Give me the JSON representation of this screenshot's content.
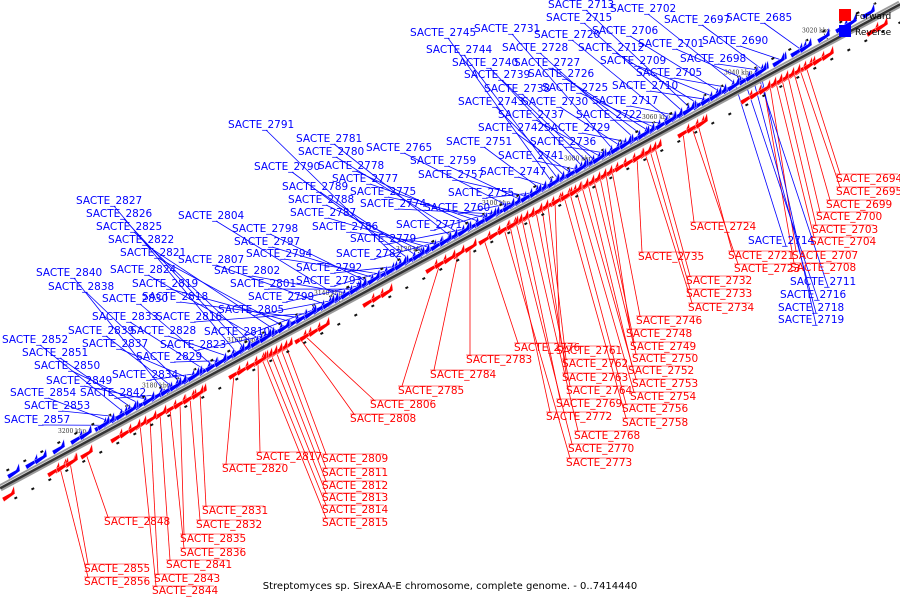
{
  "caption": "Streptomyces sp. SirexAA-E chromosome, complete genome. - 0..7414440",
  "legend": {
    "forward_label": "Forward",
    "reverse_label": "Reverse",
    "forward_color": "#ff0000",
    "reverse_color": "#0000ff"
  },
  "ticks": [
    "3020 kbp",
    "3040 kbp",
    "3060 kbp",
    "3080 kbp",
    "3100 kbp",
    "3120 kbp",
    "3140 kbp",
    "3160 kbp",
    "3180 kbp",
    "3200 kbp"
  ],
  "reverse_genes": [
    "SACTE_2685",
    "SACTE_2690",
    "SACTE_2697",
    "SACTE_2698",
    "SACTE_2701",
    "SACTE_2702",
    "SACTE_2705",
    "SACTE_2706",
    "SACTE_2709",
    "SACTE_2710",
    "SACTE_2712",
    "SACTE_2713",
    "SACTE_2715",
    "SACTE_2717",
    "SACTE_2720",
    "SACTE_2722",
    "SACTE_2725",
    "SACTE_2726",
    "SACTE_2727",
    "SACTE_2728",
    "SACTE_2729",
    "SACTE_2730",
    "SACTE_2731",
    "SACTE_2736",
    "SACTE_2737",
    "SACTE_2738",
    "SACTE_2739",
    "SACTE_2740",
    "SACTE_2741",
    "SACTE_2742",
    "SACTE_2743",
    "SACTE_2744",
    "SACTE_2745",
    "SACTE_2747",
    "SACTE_2751",
    "SACTE_2755",
    "SACTE_2757",
    "SACTE_2759",
    "SACTE_2760",
    "SACTE_2765",
    "SACTE_2771",
    "SACTE_2774",
    "SACTE_2775",
    "SACTE_2777",
    "SACTE_2778",
    "SACTE_2779",
    "SACTE_2780",
    "SACTE_2781",
    "SACTE_2782",
    "SACTE_2786",
    "SACTE_2787",
    "SACTE_2788",
    "SACTE_2789",
    "SACTE_2790",
    "SACTE_2791",
    "SACTE_2792",
    "SACTE_2793",
    "SACTE_2794",
    "SACTE_2797",
    "SACTE_2798",
    "SACTE_2799",
    "SACTE_2801",
    "SACTE_2802",
    "SACTE_2804",
    "SACTE_2805",
    "SACTE_2807",
    "SACTE_2810",
    "SACTE_2816",
    "SACTE_2818",
    "SACTE_2819",
    "SACTE_2821",
    "SACTE_2822",
    "SACTE_2823",
    "SACTE_2824",
    "SACTE_2825",
    "SACTE_2826",
    "SACTE_2827",
    "SACTE_2828",
    "SACTE_2829",
    "SACTE_2830",
    "SACTE_2833",
    "SACTE_2834",
    "SACTE_2837",
    "SACTE_2838",
    "SACTE_2839",
    "SACTE_2840",
    "SACTE_2842",
    "SACTE_2849",
    "SACTE_2850",
    "SACTE_2851",
    "SACTE_2852",
    "SACTE_2853",
    "SACTE_2854",
    "SACTE_2857",
    "SACTE_2714",
    "SACTE_2711",
    "SACTE_2716",
    "SACTE_2718",
    "SACTE_2719"
  ],
  "forward_genes": [
    "SACTE_2694",
    "SACTE_2695",
    "SACTE_2699",
    "SACTE_2700",
    "SACTE_2703",
    "SACTE_2704",
    "SACTE_2707",
    "SACTE_2708",
    "SACTE_2721",
    "SACTE_2723",
    "SACTE_2724",
    "SACTE_2732",
    "SACTE_2733",
    "SACTE_2734",
    "SACTE_2735",
    "SACTE_2746",
    "SACTE_2748",
    "SACTE_2749",
    "SACTE_2750",
    "SACTE_2752",
    "SACTE_2753",
    "SACTE_2754",
    "SACTE_2756",
    "SACTE_2758",
    "SACTE_2761",
    "SACTE_2762",
    "SACTE_2763",
    "SACTE_2764",
    "SACTE_2768",
    "SACTE_2769",
    "SACTE_2770",
    "SACTE_2772",
    "SACTE_2773",
    "SACTE_2776",
    "SACTE_2783",
    "SACTE_2784",
    "SACTE_2785",
    "SACTE_2806",
    "SACTE_2808",
    "SACTE_2809",
    "SACTE_2811",
    "SACTE_2812",
    "SACTE_2813",
    "SACTE_2814",
    "SACTE_2815",
    "SACTE_2817",
    "SACTE_2820",
    "SACTE_2831",
    "SACTE_2832",
    "SACTE_2835",
    "SACTE_2836",
    "SACTE_2841",
    "SACTE_2843",
    "SACTE_2844",
    "SACTE_2848",
    "SACTE_2855",
    "SACTE_2856"
  ]
}
